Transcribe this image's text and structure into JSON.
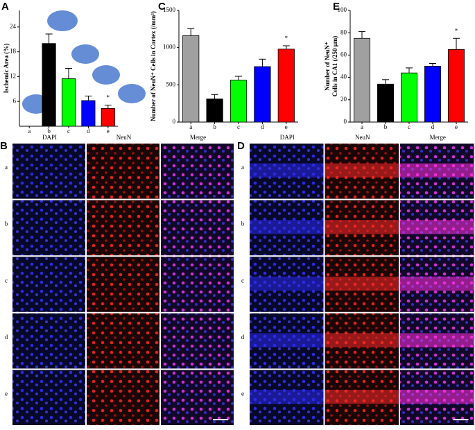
{
  "chart_data": [
    {
      "type": "bar",
      "panel": "A",
      "y_label": [
        "Ischemic Area (%)"
      ],
      "categories": [
        "a",
        "b",
        "c",
        "d",
        "e"
      ],
      "values": [
        0,
        20,
        11.5,
        6.2,
        4.3
      ],
      "errors": [
        0,
        2.3,
        2.5,
        1.1,
        0.8
      ],
      "colors": [
        "#a0a0a0",
        "#000000",
        "#00ff00",
        "#0000ff",
        "#ff0000"
      ],
      "ylim": [
        0,
        28
      ],
      "yticks": [
        6,
        12,
        18,
        24
      ],
      "annotations": [
        {
          "text": "*",
          "category": "e"
        }
      ]
    },
    {
      "type": "bar",
      "panel": "C",
      "y_label": [
        "Number of NeuN⁺ Cells in Cortex (/mm²)"
      ],
      "categories": [
        "a",
        "b",
        "c",
        "d",
        "e"
      ],
      "values": [
        1160,
        310,
        565,
        745,
        980
      ],
      "errors": [
        95,
        60,
        50,
        100,
        45
      ],
      "colors": [
        "#a0a0a0",
        "#000000",
        "#00ff00",
        "#0000ff",
        "#ff0000"
      ],
      "ylim": [
        0,
        1500
      ],
      "yticks": [
        0,
        500,
        1000,
        1500
      ],
      "annotations": [
        {
          "text": "*",
          "category": "e"
        }
      ]
    },
    {
      "type": "bar",
      "panel": "E",
      "y_label": [
        "Number of NeuN⁺",
        "Cells in CA1 (/250 μm)"
      ],
      "categories": [
        "a",
        "b",
        "c",
        "d",
        "e"
      ],
      "values": [
        75,
        34,
        44,
        50,
        65
      ],
      "errors": [
        6,
        4,
        4.5,
        2.5,
        10
      ],
      "colors": [
        "#a0a0a0",
        "#000000",
        "#00ff00",
        "#0000ff",
        "#ff0000"
      ],
      "ylim": [
        0,
        100
      ],
      "yticks": [
        0,
        20,
        40,
        60,
        80,
        100
      ],
      "annotations": [
        {
          "text": "*",
          "category": "e"
        }
      ]
    }
  ],
  "micrographs": [
    {
      "panel": "B",
      "columns": [
        "DAPI",
        "NeuN",
        "Merge"
      ],
      "rows": [
        "a",
        "b",
        "c",
        "d",
        "e"
      ]
    },
    {
      "panel": "D",
      "columns": [
        "DAPI",
        "NeuN",
        "Merge"
      ],
      "rows": [
        "a",
        "b",
        "c",
        "d",
        "e"
      ]
    }
  ]
}
